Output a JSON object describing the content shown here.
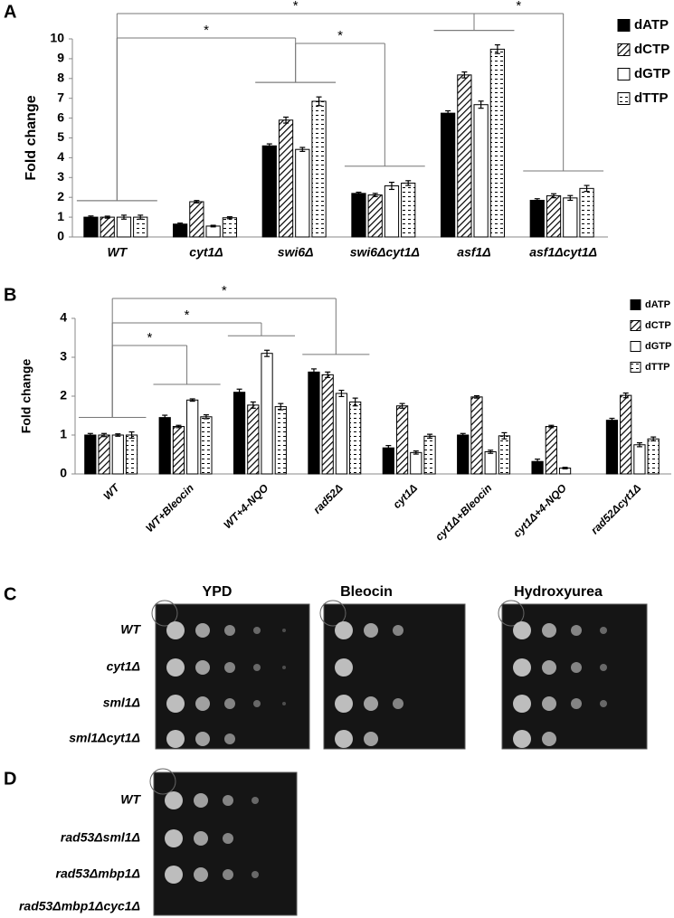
{
  "figure": {
    "panel_labels": [
      "A",
      "B",
      "C",
      "D"
    ]
  },
  "chart_data": [
    {
      "type": "bar",
      "ylabel": "Fold change",
      "categories": [
        "WT",
        "cyt1Δ",
        "swi6Δ",
        "swi6Δcyt1Δ",
        "asf1Δ",
        "asf1Δcyt1Δ"
      ],
      "series": [
        {
          "name": "dATP",
          "color": "#000000",
          "pattern": "solid",
          "values": [
            1,
            0.65,
            4.6,
            2.2,
            6.25,
            1.85
          ],
          "errors": [
            0.06,
            0.05,
            0.1,
            0.06,
            0.12,
            0.08
          ]
        },
        {
          "name": "dCTP",
          "color": "#ffffff",
          "pattern": "hatch",
          "values": [
            1,
            1.78,
            5.9,
            2.12,
            8.18,
            2.08
          ],
          "errors": [
            0.05,
            0.06,
            0.15,
            0.08,
            0.15,
            0.1
          ]
        },
        {
          "name": "dGTP",
          "color": "#ffffff",
          "pattern": "none",
          "values": [
            1,
            0.55,
            4.42,
            2.58,
            6.68,
            1.97
          ],
          "errors": [
            0.1,
            0.04,
            0.1,
            0.18,
            0.18,
            0.12
          ]
        },
        {
          "name": "dTTP",
          "color": "#ffffff",
          "pattern": "dash",
          "values": [
            1,
            0.97,
            6.85,
            2.72,
            9.48,
            2.45
          ],
          "errors": [
            0.1,
            0.05,
            0.22,
            0.12,
            0.22,
            0.15
          ]
        }
      ],
      "ylim": [
        0,
        10
      ],
      "yticks": [
        0,
        1,
        2,
        3,
        4,
        5,
        6,
        7,
        8,
        9,
        10
      ],
      "comparisons": [
        {
          "between": [
            "WT",
            "asf1Δ"
          ],
          "label": "*"
        },
        {
          "between": [
            "WT",
            "swi6Δ"
          ],
          "label": "*"
        },
        {
          "between": [
            "swi6Δ",
            "swi6Δcyt1Δ"
          ],
          "label": "*"
        },
        {
          "between": [
            "asf1Δ",
            "asf1Δcyt1Δ"
          ],
          "label": "*"
        }
      ]
    },
    {
      "type": "bar",
      "ylabel": "Fold change",
      "categories": [
        "WT",
        "WT+Bleocin",
        "WT+4-NQO",
        "rad52Δ",
        "cyt1Δ",
        "cyt1Δ+Bleocin",
        "cyt1Δ+4-NQO",
        "rad52Δcyt1Δ"
      ],
      "series": [
        {
          "name": "dATP",
          "color": "#000000",
          "pattern": "solid",
          "values": [
            1,
            1.45,
            2.1,
            2.62,
            0.67,
            1.0,
            0.32,
            1.38
          ],
          "errors": [
            0.04,
            0.06,
            0.08,
            0.08,
            0.06,
            0.04,
            0.06,
            0.05
          ]
        },
        {
          "name": "dCTP",
          "color": "#ffffff",
          "pattern": "hatch",
          "values": [
            1,
            1.22,
            1.77,
            2.55,
            1.75,
            1.98,
            1.22,
            2.02
          ],
          "errors": [
            0.04,
            0.03,
            0.08,
            0.07,
            0.06,
            0.03,
            0.03,
            0.06
          ]
        },
        {
          "name": "dGTP",
          "color": "#ffffff",
          "pattern": "none",
          "values": [
            1,
            1.9,
            3.1,
            2.07,
            0.55,
            0.57,
            0.15,
            0.75
          ],
          "errors": [
            0.03,
            0.03,
            0.08,
            0.08,
            0.04,
            0.04,
            0.02,
            0.05
          ]
        },
        {
          "name": "dTTP",
          "color": "#ffffff",
          "pattern": "dash",
          "values": [
            1,
            1.47,
            1.73,
            1.85,
            0.97,
            0.98,
            null,
            0.9
          ],
          "errors": [
            0.08,
            0.05,
            0.08,
            0.1,
            0.05,
            0.08,
            null,
            0.05
          ]
        }
      ],
      "ylim": [
        0,
        4
      ],
      "yticks": [
        0,
        1,
        2,
        3,
        4
      ],
      "comparisons": [
        {
          "between": [
            "WT",
            "rad52Δ"
          ],
          "label": "*"
        },
        {
          "between": [
            "WT",
            "WT+4-NQO"
          ],
          "label": "*"
        },
        {
          "between": [
            "WT",
            "WT+Bleocin"
          ],
          "label": "*"
        }
      ]
    }
  ],
  "plates": {
    "panel_c": {
      "columns": [
        "YPD",
        "Bleocin",
        "Hydroxyurea"
      ],
      "rows": [
        "WT",
        "cyt1Δ",
        "sml1Δ",
        "sml1Δcyt1Δ"
      ]
    },
    "panel_d": {
      "rows": [
        "WT",
        "rad53Δsml1Δ",
        "rad53Δmbp1Δ",
        "rad53Δmbp1Δcyc1Δ"
      ]
    }
  }
}
